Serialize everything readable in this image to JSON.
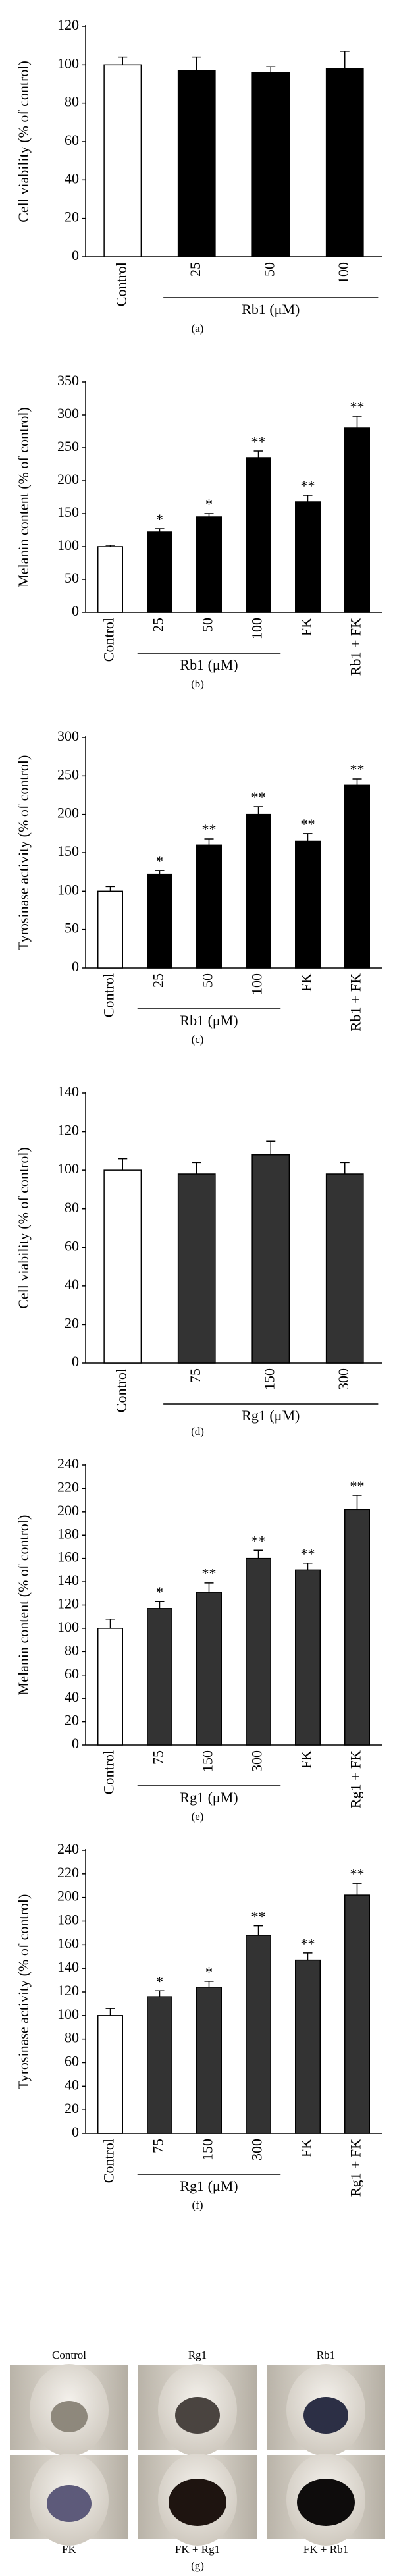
{
  "chart_data": [
    {
      "type": "bar",
      "y_label": "Cell viability (% of control)",
      "categories": [
        "Control",
        "25",
        "50",
        "100"
      ],
      "values": [
        100,
        97,
        96,
        98
      ],
      "errors": [
        4,
        7,
        3,
        9
      ],
      "colors": [
        "#ffffff",
        "#000000",
        "#000000",
        "#000000"
      ],
      "ylim": [
        0,
        120
      ],
      "yticks": [
        0,
        20,
        40,
        60,
        80,
        100,
        120
      ],
      "group_label": "Rb1 (μM)",
      "caption": "(a)"
    },
    {
      "type": "bar",
      "y_label": "Melanin content (% of control)",
      "categories": [
        "Control",
        "25",
        "50",
        "100",
        "FK",
        "Rb1 + FK"
      ],
      "values": [
        100,
        122,
        145,
        235,
        168,
        280
      ],
      "errors": [
        2,
        5,
        5,
        10,
        10,
        18
      ],
      "annotations": [
        null,
        "*",
        "*",
        "**",
        "**",
        "**"
      ],
      "colors": [
        "#ffffff",
        "#000000",
        "#000000",
        "#000000",
        "#000000",
        "#000000"
      ],
      "ylim": [
        0,
        350
      ],
      "yticks": [
        0,
        50,
        100,
        150,
        200,
        250,
        300,
        350
      ],
      "group_label": "Rb1 (μM)",
      "caption": "(b)"
    },
    {
      "type": "bar",
      "y_label": "Tyrosinase activity (% of control)",
      "categories": [
        "Control",
        "25",
        "50",
        "100",
        "FK",
        "Rb1 + FK"
      ],
      "values": [
        100,
        122,
        160,
        200,
        165,
        238
      ],
      "errors": [
        6,
        5,
        8,
        10,
        10,
        8
      ],
      "annotations": [
        null,
        "*",
        "**",
        "**",
        "**",
        "**"
      ],
      "colors": [
        "#ffffff",
        "#000000",
        "#000000",
        "#000000",
        "#000000",
        "#000000"
      ],
      "ylim": [
        0,
        300
      ],
      "yticks": [
        0,
        50,
        100,
        150,
        200,
        250,
        300
      ],
      "group_label": "Rb1 (μM)",
      "caption": "(c)"
    },
    {
      "type": "bar",
      "y_label": "Cell viability (% of control)",
      "categories": [
        "Control",
        "75",
        "150",
        "300"
      ],
      "values": [
        100,
        98,
        108,
        98
      ],
      "errors": [
        6,
        6,
        7,
        6
      ],
      "colors": [
        "#ffffff",
        "#333333",
        "#333333",
        "#333333"
      ],
      "ylim": [
        0,
        140
      ],
      "yticks": [
        0,
        20,
        40,
        60,
        80,
        100,
        120,
        140
      ],
      "group_label": "Rg1 (μM)",
      "caption": "(d)"
    },
    {
      "type": "bar",
      "y_label": "Melanin content (% of control)",
      "categories": [
        "Control",
        "75",
        "150",
        "300",
        "FK",
        "Rg1 + FK"
      ],
      "values": [
        100,
        117,
        131,
        160,
        150,
        202
      ],
      "errors": [
        8,
        6,
        8,
        7,
        6,
        12
      ],
      "annotations": [
        null,
        "*",
        "**",
        "**",
        "**",
        "**"
      ],
      "colors": [
        "#ffffff",
        "#333333",
        "#333333",
        "#333333",
        "#333333",
        "#333333"
      ],
      "ylim": [
        0,
        240
      ],
      "yticks": [
        0,
        20,
        40,
        60,
        80,
        100,
        120,
        140,
        160,
        180,
        200,
        220,
        240
      ],
      "group_label": "Rg1 (μM)",
      "caption": "(e)"
    },
    {
      "type": "bar",
      "y_label": "Tyrosinase activity (% of control)",
      "categories": [
        "Control",
        "75",
        "150",
        "300",
        "FK",
        "Rg1 + FK"
      ],
      "values": [
        100,
        116,
        124,
        168,
        147,
        202
      ],
      "errors": [
        6,
        5,
        5,
        8,
        6,
        10
      ],
      "annotations": [
        null,
        "*",
        "*",
        "**",
        "**",
        "**"
      ],
      "colors": [
        "#ffffff",
        "#333333",
        "#333333",
        "#333333",
        "#333333",
        "#333333"
      ],
      "ylim": [
        0,
        240
      ],
      "yticks": [
        0,
        20,
        40,
        60,
        80,
        100,
        120,
        140,
        160,
        180,
        200,
        220,
        240
      ],
      "group_label": "Rg1 (μM)",
      "caption": "(f)"
    }
  ],
  "figure_g": {
    "top_labels": [
      "Control",
      "Rg1",
      "Rb1"
    ],
    "bottom_labels": [
      "FK",
      "FK + Rg1",
      "FK + Rb1"
    ],
    "caption": "(g)"
  }
}
